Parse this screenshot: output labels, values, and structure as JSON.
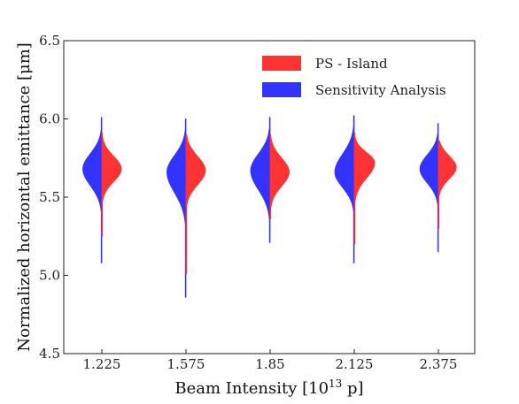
{
  "chart_data": {
    "type": "violin",
    "xlabel": "Beam Intensity [10",
    "xlabel_sup": "13",
    "xlabel_suffix": " p]",
    "ylabel": "Normalized horizontal emittance [μm]",
    "categories": [
      "1.225",
      "1.575",
      "1.85",
      "2.125",
      "2.375"
    ],
    "ylim": [
      4.5,
      6.5
    ],
    "yticks": [
      "4.5",
      "5.0",
      "5.5",
      "6.0",
      "6.5"
    ],
    "legend_position": "top-right",
    "series": [
      {
        "name": "Sensitivity Analysis",
        "side": "left",
        "color": "#3333ff",
        "violins": [
          {
            "min": 5.08,
            "max": 6.01,
            "peak": 5.68,
            "peak_width": 0.98,
            "q_low": 5.55,
            "q_high": 5.8
          },
          {
            "min": 4.86,
            "max": 6.0,
            "peak": 5.66,
            "peak_width": 0.98,
            "q_low": 5.5,
            "q_high": 5.79
          },
          {
            "min": 5.21,
            "max": 6.01,
            "peak": 5.67,
            "peak_width": 1.0,
            "q_low": 5.52,
            "q_high": 5.8
          },
          {
            "min": 5.08,
            "max": 6.02,
            "peak": 5.66,
            "peak_width": 1.0,
            "q_low": 5.54,
            "q_high": 5.8
          },
          {
            "min": 5.15,
            "max": 5.97,
            "peak": 5.68,
            "peak_width": 0.95,
            "q_low": 5.57,
            "q_high": 5.79
          }
        ]
      },
      {
        "name": "PS - Island",
        "side": "right",
        "color": "#ff3333",
        "violins": [
          {
            "min": 5.25,
            "max": 5.91,
            "peak": 5.68,
            "peak_width": 1.0,
            "q_low": 5.58,
            "q_high": 5.78
          },
          {
            "min": 5.01,
            "max": 5.9,
            "peak": 5.67,
            "peak_width": 1.0,
            "q_low": 5.56,
            "q_high": 5.78
          },
          {
            "min": 5.36,
            "max": 5.9,
            "peak": 5.66,
            "peak_width": 0.98,
            "q_low": 5.55,
            "q_high": 5.77
          },
          {
            "min": 5.2,
            "max": 5.91,
            "peak": 5.72,
            "peak_width": 1.05,
            "q_low": 5.6,
            "q_high": 5.8
          },
          {
            "min": 5.3,
            "max": 5.86,
            "peak": 5.69,
            "peak_width": 0.92,
            "q_low": 5.6,
            "q_high": 5.78
          }
        ]
      }
    ],
    "legend": [
      {
        "label": "PS - Island",
        "color": "#ff3333"
      },
      {
        "label": "Sensitivity Analysis",
        "color": "#3333ff"
      }
    ]
  }
}
